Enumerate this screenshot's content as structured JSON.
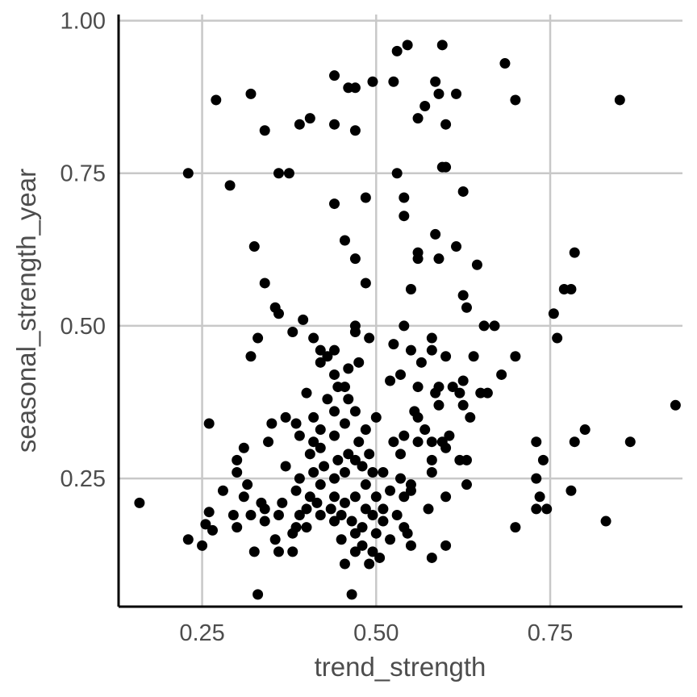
{
  "chart_data": {
    "type": "scatter",
    "title": "",
    "xlabel": "trend_strength",
    "ylabel": "seasonal_strength_year",
    "xlim": [
      0.13,
      0.94
    ],
    "ylim": [
      0.04,
      1.01
    ],
    "x_ticks": [
      0.25,
      0.5,
      0.75
    ],
    "x_tick_labels": [
      "0.25",
      "0.50",
      "0.75"
    ],
    "y_ticks": [
      0.25,
      0.5,
      0.75,
      1.0
    ],
    "y_tick_labels": [
      "0.25",
      "0.50",
      "0.75",
      "1.00"
    ],
    "grid": true,
    "point_color": "#000000",
    "points": [
      [
        0.16,
        0.21
      ],
      [
        0.23,
        0.15
      ],
      [
        0.25,
        0.14
      ],
      [
        0.255,
        0.175
      ],
      [
        0.26,
        0.195
      ],
      [
        0.265,
        0.165
      ],
      [
        0.26,
        0.34
      ],
      [
        0.23,
        0.75
      ],
      [
        0.27,
        0.87
      ],
      [
        0.29,
        0.73
      ],
      [
        0.28,
        0.23
      ],
      [
        0.295,
        0.19
      ],
      [
        0.3,
        0.26
      ],
      [
        0.3,
        0.28
      ],
      [
        0.3,
        0.17
      ],
      [
        0.31,
        0.22
      ],
      [
        0.315,
        0.24
      ],
      [
        0.31,
        0.3
      ],
      [
        0.32,
        0.19
      ],
      [
        0.325,
        0.13
      ],
      [
        0.33,
        0.06
      ],
      [
        0.32,
        0.45
      ],
      [
        0.33,
        0.48
      ],
      [
        0.325,
        0.63
      ],
      [
        0.32,
        0.88
      ],
      [
        0.335,
        0.21
      ],
      [
        0.34,
        0.18
      ],
      [
        0.34,
        0.2
      ],
      [
        0.345,
        0.31
      ],
      [
        0.35,
        0.34
      ],
      [
        0.34,
        0.57
      ],
      [
        0.34,
        0.82
      ],
      [
        0.355,
        0.15
      ],
      [
        0.36,
        0.13
      ],
      [
        0.36,
        0.19
      ],
      [
        0.365,
        0.21
      ],
      [
        0.37,
        0.27
      ],
      [
        0.37,
        0.35
      ],
      [
        0.36,
        0.52
      ],
      [
        0.355,
        0.53
      ],
      [
        0.36,
        0.75
      ],
      [
        0.375,
        0.75
      ],
      [
        0.38,
        0.16
      ],
      [
        0.38,
        0.13
      ],
      [
        0.385,
        0.17
      ],
      [
        0.39,
        0.19
      ],
      [
        0.385,
        0.23
      ],
      [
        0.39,
        0.25
      ],
      [
        0.39,
        0.32
      ],
      [
        0.385,
        0.34
      ],
      [
        0.38,
        0.49
      ],
      [
        0.395,
        0.51
      ],
      [
        0.39,
        0.83
      ],
      [
        0.4,
        0.17
      ],
      [
        0.4,
        0.2
      ],
      [
        0.405,
        0.22
      ],
      [
        0.41,
        0.26
      ],
      [
        0.405,
        0.29
      ],
      [
        0.41,
        0.31
      ],
      [
        0.41,
        0.35
      ],
      [
        0.4,
        0.39
      ],
      [
        0.41,
        0.48
      ],
      [
        0.405,
        0.84
      ],
      [
        0.42,
        0.19
      ],
      [
        0.415,
        0.21
      ],
      [
        0.42,
        0.24
      ],
      [
        0.425,
        0.27
      ],
      [
        0.42,
        0.3
      ],
      [
        0.42,
        0.33
      ],
      [
        0.43,
        0.38
      ],
      [
        0.42,
        0.44
      ],
      [
        0.43,
        0.45
      ],
      [
        0.42,
        0.46
      ],
      [
        0.435,
        0.2
      ],
      [
        0.44,
        0.22
      ],
      [
        0.44,
        0.18
      ],
      [
        0.44,
        0.25
      ],
      [
        0.445,
        0.28
      ],
      [
        0.44,
        0.32
      ],
      [
        0.44,
        0.36
      ],
      [
        0.445,
        0.4
      ],
      [
        0.44,
        0.42
      ],
      [
        0.44,
        0.46
      ],
      [
        0.44,
        0.7
      ],
      [
        0.44,
        0.83
      ],
      [
        0.44,
        0.91
      ],
      [
        0.45,
        0.15
      ],
      [
        0.455,
        0.11
      ],
      [
        0.45,
        0.19
      ],
      [
        0.455,
        0.21
      ],
      [
        0.455,
        0.26
      ],
      [
        0.46,
        0.29
      ],
      [
        0.455,
        0.34
      ],
      [
        0.46,
        0.38
      ],
      [
        0.455,
        0.4
      ],
      [
        0.46,
        0.43
      ],
      [
        0.455,
        0.64
      ],
      [
        0.46,
        0.89
      ],
      [
        0.465,
        0.06
      ],
      [
        0.47,
        0.13
      ],
      [
        0.47,
        0.16
      ],
      [
        0.465,
        0.18
      ],
      [
        0.47,
        0.22
      ],
      [
        0.47,
        0.28
      ],
      [
        0.475,
        0.31
      ],
      [
        0.47,
        0.36
      ],
      [
        0.475,
        0.44
      ],
      [
        0.47,
        0.49
      ],
      [
        0.47,
        0.5
      ],
      [
        0.47,
        0.61
      ],
      [
        0.47,
        0.82
      ],
      [
        0.47,
        0.89
      ],
      [
        0.48,
        0.14
      ],
      [
        0.48,
        0.17
      ],
      [
        0.485,
        0.2
      ],
      [
        0.485,
        0.24
      ],
      [
        0.48,
        0.27
      ],
      [
        0.49,
        0.29
      ],
      [
        0.485,
        0.33
      ],
      [
        0.49,
        0.48
      ],
      [
        0.485,
        0.57
      ],
      [
        0.485,
        0.71
      ],
      [
        0.49,
        0.11
      ],
      [
        0.495,
        0.13
      ],
      [
        0.5,
        0.16
      ],
      [
        0.495,
        0.19
      ],
      [
        0.5,
        0.22
      ],
      [
        0.495,
        0.26
      ],
      [
        0.5,
        0.35
      ],
      [
        0.495,
        0.9
      ],
      [
        0.505,
        0.12
      ],
      [
        0.51,
        0.18
      ],
      [
        0.51,
        0.2
      ],
      [
        0.51,
        0.26
      ],
      [
        0.52,
        0.15
      ],
      [
        0.52,
        0.23
      ],
      [
        0.525,
        0.31
      ],
      [
        0.52,
        0.41
      ],
      [
        0.525,
        0.47
      ],
      [
        0.525,
        0.9
      ],
      [
        0.53,
        0.95
      ],
      [
        0.53,
        0.75
      ],
      [
        0.53,
        0.19
      ],
      [
        0.535,
        0.25
      ],
      [
        0.535,
        0.29
      ],
      [
        0.54,
        0.17
      ],
      [
        0.54,
        0.22
      ],
      [
        0.54,
        0.32
      ],
      [
        0.535,
        0.42
      ],
      [
        0.54,
        0.5
      ],
      [
        0.54,
        0.71
      ],
      [
        0.54,
        0.68
      ],
      [
        0.545,
        0.96
      ],
      [
        0.545,
        0.16
      ],
      [
        0.55,
        0.14
      ],
      [
        0.55,
        0.24
      ],
      [
        0.55,
        0.23
      ],
      [
        0.55,
        0.46
      ],
      [
        0.55,
        0.56
      ],
      [
        0.555,
        0.36
      ],
      [
        0.56,
        0.31
      ],
      [
        0.56,
        0.35
      ],
      [
        0.56,
        0.4
      ],
      [
        0.56,
        0.61
      ],
      [
        0.56,
        0.62
      ],
      [
        0.56,
        0.84
      ],
      [
        0.565,
        0.44
      ],
      [
        0.57,
        0.33
      ],
      [
        0.57,
        0.86
      ],
      [
        0.575,
        0.2
      ],
      [
        0.58,
        0.12
      ],
      [
        0.58,
        0.26
      ],
      [
        0.58,
        0.28
      ],
      [
        0.58,
        0.31
      ],
      [
        0.58,
        0.46
      ],
      [
        0.58,
        0.48
      ],
      [
        0.585,
        0.39
      ],
      [
        0.585,
        0.65
      ],
      [
        0.585,
        0.9
      ],
      [
        0.59,
        0.88
      ],
      [
        0.59,
        0.4
      ],
      [
        0.59,
        0.37
      ],
      [
        0.59,
        0.61
      ],
      [
        0.595,
        0.31
      ],
      [
        0.595,
        0.96
      ],
      [
        0.595,
        0.76
      ],
      [
        0.6,
        0.3
      ],
      [
        0.6,
        0.14
      ],
      [
        0.6,
        0.22
      ],
      [
        0.6,
        0.45
      ],
      [
        0.6,
        0.76
      ],
      [
        0.6,
        0.83
      ],
      [
        0.605,
        0.32
      ],
      [
        0.61,
        0.4
      ],
      [
        0.615,
        0.63
      ],
      [
        0.615,
        0.88
      ],
      [
        0.62,
        0.28
      ],
      [
        0.62,
        0.39
      ],
      [
        0.625,
        0.37
      ],
      [
        0.625,
        0.41
      ],
      [
        0.625,
        0.55
      ],
      [
        0.625,
        0.72
      ],
      [
        0.63,
        0.53
      ],
      [
        0.63,
        0.28
      ],
      [
        0.63,
        0.24
      ],
      [
        0.635,
        0.35
      ],
      [
        0.64,
        0.45
      ],
      [
        0.645,
        0.6
      ],
      [
        0.65,
        0.39
      ],
      [
        0.655,
        0.5
      ],
      [
        0.66,
        0.39
      ],
      [
        0.67,
        0.5
      ],
      [
        0.68,
        0.42
      ],
      [
        0.685,
        0.93
      ],
      [
        0.7,
        0.17
      ],
      [
        0.7,
        0.45
      ],
      [
        0.7,
        0.87
      ],
      [
        0.73,
        0.31
      ],
      [
        0.73,
        0.25
      ],
      [
        0.73,
        0.2
      ],
      [
        0.735,
        0.22
      ],
      [
        0.74,
        0.28
      ],
      [
        0.745,
        0.2
      ],
      [
        0.755,
        0.52
      ],
      [
        0.76,
        0.48
      ],
      [
        0.77,
        0.56
      ],
      [
        0.78,
        0.23
      ],
      [
        0.78,
        0.56
      ],
      [
        0.785,
        0.31
      ],
      [
        0.785,
        0.62
      ],
      [
        0.8,
        0.33
      ],
      [
        0.83,
        0.18
      ],
      [
        0.85,
        0.87
      ],
      [
        0.865,
        0.31
      ],
      [
        0.93,
        0.37
      ]
    ]
  }
}
